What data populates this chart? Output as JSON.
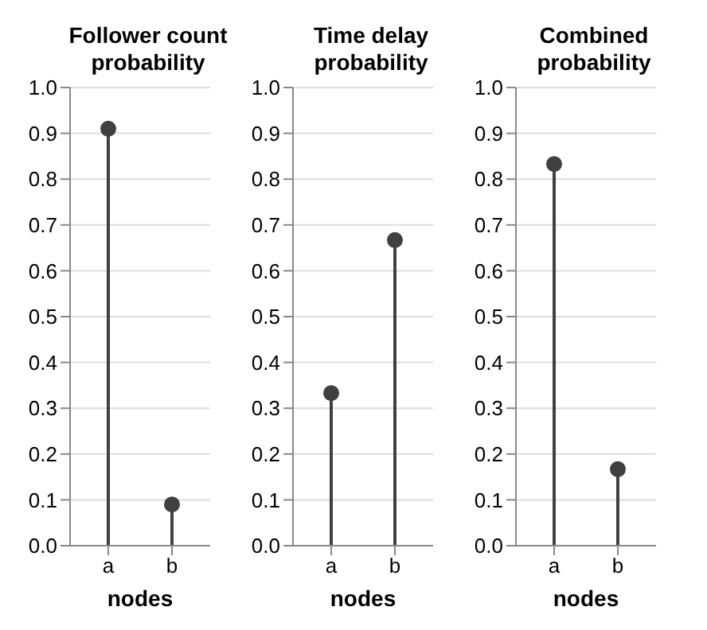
{
  "chart_data": [
    {
      "type": "lollipop",
      "title": "Follower count probability",
      "xlabel": "nodes",
      "categories": [
        "a",
        "b"
      ],
      "values": [
        0.91,
        0.09
      ],
      "color": "#404040",
      "marker": "circle",
      "grid": "y",
      "ylim": [
        0,
        1
      ],
      "yticks": [
        {
          "value": 0,
          "label": "0.0"
        },
        {
          "value": 0.1,
          "label": "0.1"
        },
        {
          "value": 0.2,
          "label": "0.2"
        },
        {
          "value": 0.3,
          "label": "0.3"
        },
        {
          "value": 0.4,
          "label": "0.4"
        },
        {
          "value": 0.5,
          "label": "0.5"
        },
        {
          "value": 0.6,
          "label": "0.6"
        },
        {
          "value": 0.7,
          "label": "0.7"
        },
        {
          "value": 0.8,
          "label": "0.8"
        },
        {
          "value": 0.9,
          "label": "0.9"
        },
        {
          "value": 1,
          "label": "1.0"
        }
      ]
    },
    {
      "type": "lollipop",
      "title": "Time delay probability",
      "xlabel": "nodes",
      "categories": [
        "a",
        "b"
      ],
      "values": [
        0.333,
        0.667
      ],
      "color": "#404040",
      "marker": "circle",
      "grid": "y",
      "ylim": [
        0,
        1
      ],
      "yticks": [
        {
          "value": 0,
          "label": "0.0"
        },
        {
          "value": 0.1,
          "label": "0.1"
        },
        {
          "value": 0.2,
          "label": "0.2"
        },
        {
          "value": 0.3,
          "label": "0.3"
        },
        {
          "value": 0.4,
          "label": "0.4"
        },
        {
          "value": 0.5,
          "label": "0.5"
        },
        {
          "value": 0.6,
          "label": "0.6"
        },
        {
          "value": 0.7,
          "label": "0.7"
        },
        {
          "value": 0.8,
          "label": "0.8"
        },
        {
          "value": 0.9,
          "label": "0.9"
        },
        {
          "value": 1,
          "label": "1.0"
        }
      ]
    },
    {
      "type": "lollipop",
      "title": "Combined probability",
      "xlabel": "nodes",
      "categories": [
        "a",
        "b"
      ],
      "values": [
        0.833,
        0.167
      ],
      "color": "#404040",
      "marker": "circle",
      "grid": "y",
      "ylim": [
        0,
        1
      ],
      "yticks": [
        {
          "value": 0,
          "label": "0.0"
        },
        {
          "value": 0.1,
          "label": "0.1"
        },
        {
          "value": 0.2,
          "label": "0.2"
        },
        {
          "value": 0.3,
          "label": "0.3"
        },
        {
          "value": 0.4,
          "label": "0.4"
        },
        {
          "value": 0.5,
          "label": "0.5"
        },
        {
          "value": 0.6,
          "label": "0.6"
        },
        {
          "value": 0.7,
          "label": "0.7"
        },
        {
          "value": 0.8,
          "label": "0.8"
        },
        {
          "value": 0.9,
          "label": "0.9"
        },
        {
          "value": 1,
          "label": "1.0"
        }
      ]
    }
  ]
}
